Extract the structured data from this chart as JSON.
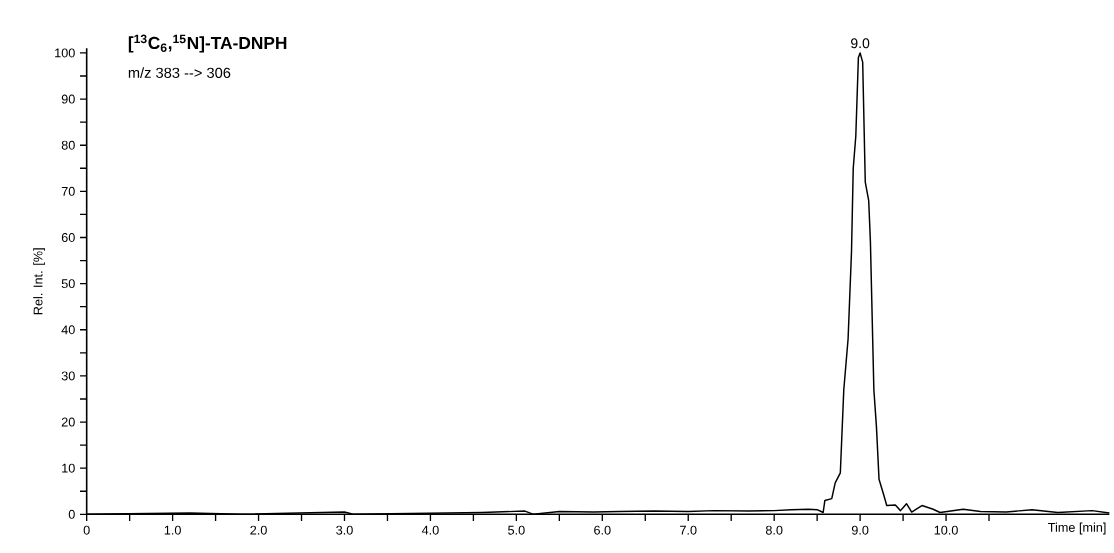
{
  "chart_data": {
    "type": "line",
    "xlabel": "Time [min]",
    "ylabel": "Rel. Int. [%]",
    "annotations": [
      "[$^{13}$C$_{6}$,$^{15}$N]-TA-DNPH",
      "m/z 383 --> 306",
      {
        "text": "9.0",
        "x": 9.0,
        "y": 100
      }
    ],
    "color": "#000000",
    "line_style": "solid",
    "marker": "none",
    "xlim": [
      0,
      11.9
    ],
    "ylim": [
      0,
      101
    ],
    "xticks": [
      0,
      {
        "value": 0.5,
        "label": null
      },
      {
        "value": 1,
        "label": "1.0"
      },
      {
        "value": 1.5,
        "label": null
      },
      {
        "value": 2,
        "label": "2.0"
      },
      {
        "value": 2.5,
        "label": null
      },
      {
        "value": 3,
        "label": "3.0"
      },
      {
        "value": 3.5,
        "label": null
      },
      {
        "value": 4,
        "label": "4.0"
      },
      {
        "value": 4.5,
        "label": null
      },
      {
        "value": 5,
        "label": "5.0"
      },
      {
        "value": 5.5,
        "label": null
      },
      {
        "value": 6,
        "label": "6.0"
      },
      {
        "value": 6.5,
        "label": null
      },
      {
        "value": 7,
        "label": "7.0"
      },
      {
        "value": 7.5,
        "label": null
      },
      {
        "value": 8,
        "label": "8.0"
      },
      {
        "value": 8.5,
        "label": null
      },
      {
        "value": 9,
        "label": "9.0"
      },
      {
        "value": 9.5,
        "label": null
      },
      {
        "value": 10,
        "label": "10.0"
      },
      {
        "value": 10.5,
        "label": null
      }
    ],
    "yticks": [
      0,
      {
        "value": 5,
        "label": null
      },
      10,
      {
        "value": 15,
        "label": null
      },
      20,
      {
        "value": 25,
        "label": null
      },
      30,
      {
        "value": 35,
        "label": null
      },
      40,
      {
        "value": 45,
        "label": null
      },
      50,
      {
        "value": 55,
        "label": null
      },
      60,
      {
        "value": 65,
        "label": null
      },
      70,
      {
        "value": 75,
        "label": null
      },
      80,
      {
        "value": 85,
        "label": null
      },
      90,
      {
        "value": 95,
        "label": null
      },
      100
    ],
    "x": [
      0,
      1.2,
      1.8,
      3.0,
      3.1,
      4.2,
      4.6,
      5.1,
      5.2,
      5.5,
      5.9,
      6.2,
      6.6,
      7.0,
      7.3,
      7.7,
      8.0,
      8.2,
      8.4,
      8.5,
      8.57,
      8.59,
      8.67,
      8.71,
      8.77,
      8.81,
      8.86,
      8.9,
      8.92,
      8.95,
      8.98,
      9.0,
      9.03,
      9.06,
      9.1,
      9.12,
      9.16,
      9.19,
      9.22,
      9.27,
      9.31,
      9.41,
      9.47,
      9.54,
      9.6,
      9.72,
      9.85,
      9.93,
      10.2,
      10.4,
      10.7,
      11.0,
      11.3,
      11.7,
      11.9
    ],
    "values": [
      0,
      0.3,
      0,
      0.5,
      0,
      0.3,
      0.4,
      0.7,
      0,
      0.6,
      0.5,
      0.6,
      0.7,
      0.6,
      0.8,
      0.7,
      0.8,
      1.0,
      1.1,
      1.0,
      0.4,
      3,
      3.4,
      6.8,
      9,
      27,
      38,
      57,
      75,
      82,
      99,
      100,
      98,
      72,
      68,
      59,
      27,
      19,
      7.6,
      4.5,
      1.9,
      2,
      0.8,
      2.3,
      0.5,
      1.9,
      1.1,
      0.4,
      1.1,
      0.6,
      0.5,
      1.0,
      0.4,
      0.8,
      0.3
    ]
  }
}
